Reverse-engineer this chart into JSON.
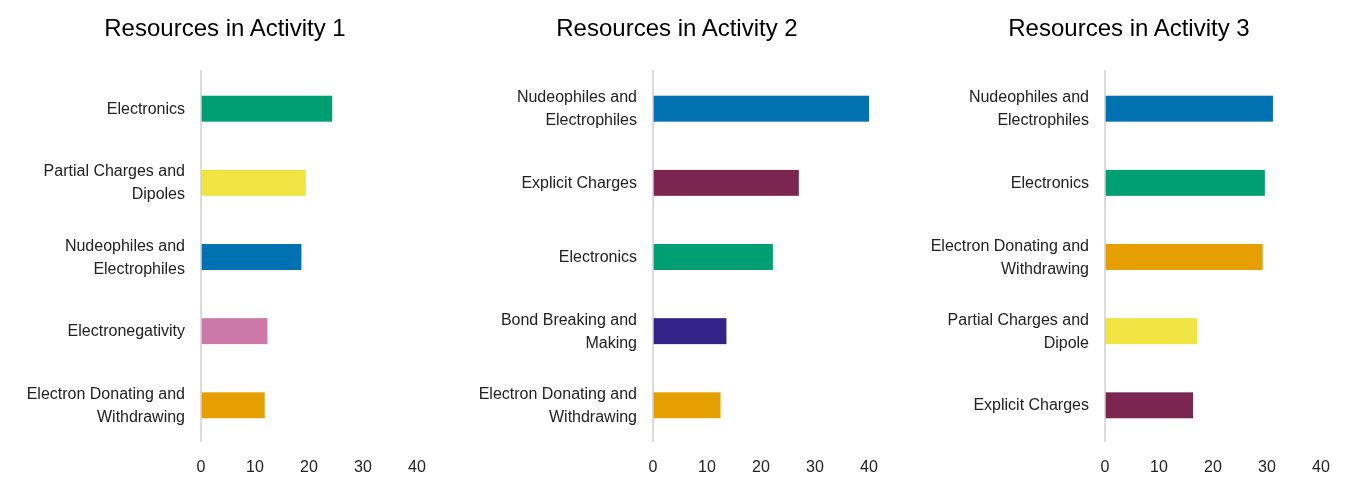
{
  "chart_data": [
    {
      "type": "bar",
      "orientation": "horizontal",
      "title": "Resources in Activity 1",
      "categories": [
        "Electronics",
        "Partial Charges and Dipoles",
        "Nudeophiles and Electrophiles",
        "Electronegativity",
        "Electron Donating and Withdrawing"
      ],
      "values": [
        24.3,
        19.4,
        18.6,
        12.3,
        11.8
      ],
      "colors": [
        "#009e73",
        "#f0e442",
        "#0072b2",
        "#cc79a7",
        "#e69f00"
      ],
      "xlim": [
        0,
        40
      ],
      "xticks": [
        0,
        10,
        20,
        30,
        40
      ],
      "grid": false
    },
    {
      "type": "bar",
      "orientation": "horizontal",
      "title": "Resources in Activity 2",
      "categories": [
        "Nudeophiles and Electrophiles",
        "Explicit Charges",
        "Electronics",
        "Bond Breaking and Making",
        "Electron Donating and Withdrawing"
      ],
      "values": [
        40,
        27,
        22.2,
        13.6,
        12.5
      ],
      "colors": [
        "#0072b2",
        "#7b2650",
        "#009e73",
        "#332288",
        "#e69f00"
      ],
      "xlim": [
        0,
        40
      ],
      "xticks": [
        0,
        10,
        20,
        30,
        40
      ],
      "grid": false
    },
    {
      "type": "bar",
      "orientation": "horizontal",
      "title": "Resources in Activity 3",
      "categories": [
        "Nudeophiles and Electrophiles",
        "Electronics",
        "Electron Donating and Withdrawing",
        "Partial Charges and Dipole",
        "Explicit Charges"
      ],
      "values": [
        31.1,
        29.6,
        29.2,
        17.1,
        16.3
      ],
      "colors": [
        "#0072b2",
        "#009e73",
        "#e69f00",
        "#f0e442",
        "#7b2650"
      ],
      "xlim": [
        0,
        40
      ],
      "xticks": [
        0,
        10,
        20,
        30,
        40
      ],
      "grid": false
    }
  ]
}
